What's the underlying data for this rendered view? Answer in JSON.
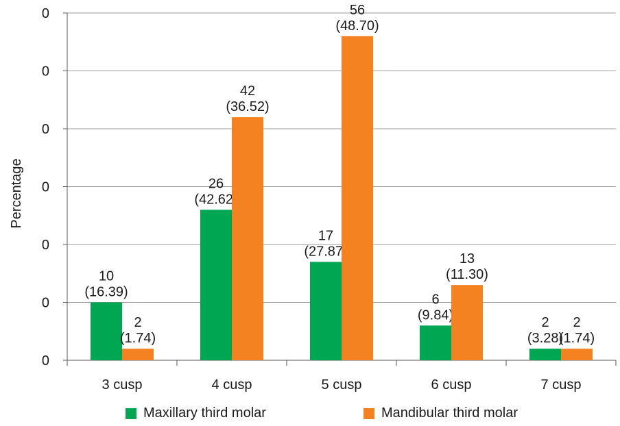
{
  "chart_data": {
    "type": "bar",
    "title": "",
    "xlabel": "",
    "ylabel": "Percentage",
    "categories": [
      "3 cusp",
      "4 cusp",
      "5 cusp",
      "6 cusp",
      "7 cusp"
    ],
    "y_tick_labels": [
      "0",
      "0",
      "0",
      "0",
      "0",
      "0",
      "0"
    ],
    "ylim": [
      0,
      60
    ],
    "grid": true,
    "legend_position": "bottom",
    "series": [
      {
        "name": "Maxillary third molar",
        "color": "#00a651",
        "values": [
          10,
          26,
          17,
          6,
          2
        ],
        "percentages": [
          "(16.39)",
          "(42.62)",
          "(27.87)",
          "(9.84)",
          "(3.28)"
        ]
      },
      {
        "name": "Mandibular third molar",
        "color": "#f58220",
        "values": [
          2,
          42,
          56,
          13,
          2
        ],
        "percentages": [
          "(1.74)",
          "(36.52)",
          "(48.70)",
          "(11.30)",
          "(1.74)"
        ]
      }
    ]
  }
}
